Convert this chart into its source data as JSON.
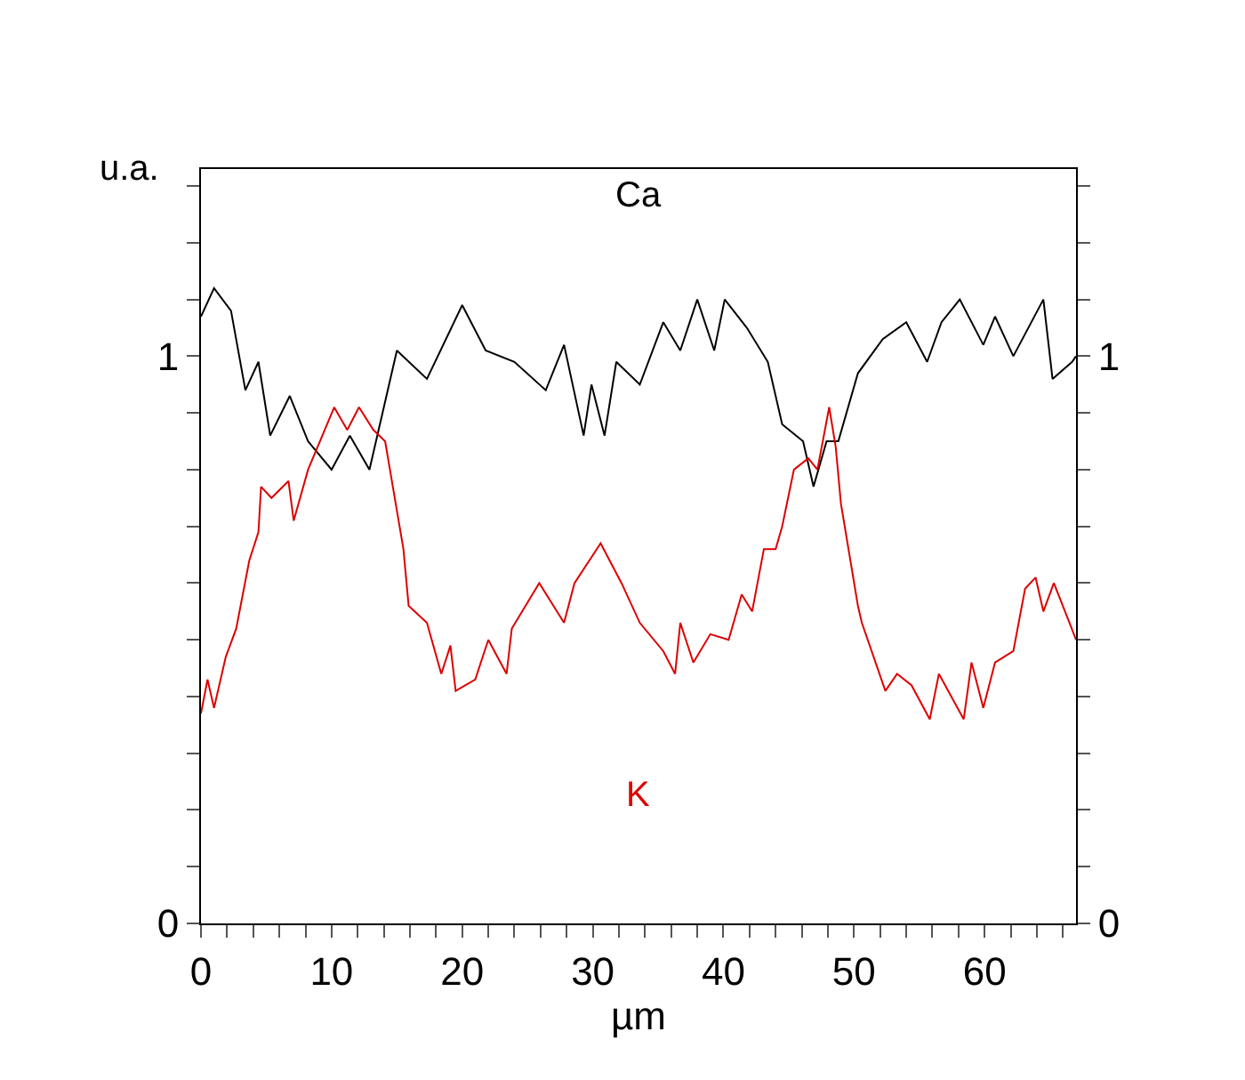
{
  "chart_data": {
    "type": "line",
    "xlabel": "µm",
    "ylabel": "u.a.",
    "legend": false,
    "marker": "none",
    "line_style": "solid",
    "xlim": [
      0,
      67
    ],
    "ylim": [
      0,
      1.33
    ],
    "y2lim": [
      0,
      1.33
    ],
    "xticks": [
      0,
      {
        "value": 2,
        "label": null
      },
      {
        "value": 4,
        "label": null
      },
      {
        "value": 6,
        "label": null
      },
      {
        "value": 8,
        "label": null
      },
      10,
      {
        "value": 12,
        "label": null
      },
      {
        "value": 14,
        "label": null
      },
      {
        "value": 16,
        "label": null
      },
      {
        "value": 18,
        "label": null
      },
      20,
      {
        "value": 22,
        "label": null
      },
      {
        "value": 24,
        "label": null
      },
      {
        "value": 26,
        "label": null
      },
      {
        "value": 28,
        "label": null
      },
      30,
      {
        "value": 32,
        "label": null
      },
      {
        "value": 34,
        "label": null
      },
      {
        "value": 36,
        "label": null
      },
      {
        "value": 38,
        "label": null
      },
      40,
      {
        "value": 42,
        "label": null
      },
      {
        "value": 44,
        "label": null
      },
      {
        "value": 46,
        "label": null
      },
      {
        "value": 48,
        "label": null
      },
      50,
      {
        "value": 52,
        "label": null
      },
      {
        "value": 54,
        "label": null
      },
      {
        "value": 56,
        "label": null
      },
      {
        "value": 58,
        "label": null
      },
      60,
      {
        "value": 62,
        "label": null
      },
      {
        "value": 64,
        "label": null
      },
      {
        "value": 66,
        "label": null
      }
    ],
    "yticks": [
      0,
      {
        "value": 0.1,
        "label": null
      },
      {
        "value": 0.2,
        "label": null
      },
      {
        "value": 0.3,
        "label": null
      },
      {
        "value": 0.4,
        "label": null
      },
      {
        "value": 0.5,
        "label": null
      },
      {
        "value": 0.6,
        "label": null
      },
      {
        "value": 0.7,
        "label": null
      },
      {
        "value": 0.8,
        "label": null
      },
      {
        "value": 0.9,
        "label": null
      },
      1,
      {
        "value": 1.1,
        "label": null
      },
      {
        "value": 1.2,
        "label": null
      },
      {
        "value": 1.3,
        "label": null
      }
    ],
    "y2ticks": [
      0,
      {
        "value": 0.1,
        "label": null
      },
      {
        "value": 0.2,
        "label": null
      },
      {
        "value": 0.3,
        "label": null
      },
      {
        "value": 0.4,
        "label": null
      },
      {
        "value": 0.5,
        "label": null
      },
      {
        "value": 0.6,
        "label": null
      },
      {
        "value": 0.7,
        "label": null
      },
      {
        "value": 0.8,
        "label": null
      },
      {
        "value": 0.9,
        "label": null
      },
      1,
      {
        "value": 1.1,
        "label": null
      },
      {
        "value": 1.2,
        "label": null
      },
      {
        "value": 1.3,
        "label": null
      }
    ],
    "series": [
      {
        "name": "Ca",
        "color": "#000000",
        "x": [
          0,
          1,
          2.3,
          3.4,
          4.4,
          5.3,
          6.8,
          8.2,
          10,
          11.4,
          12.9,
          13.9,
          15,
          17.3,
          20,
          21.8,
          24,
          26.4,
          27.8,
          29.3,
          29.9,
          30.9,
          31.8,
          33.6,
          35.4,
          36.7,
          38,
          39.3,
          40.1,
          41.8,
          43.4,
          44.5,
          46.1,
          46.9,
          47.9,
          48.8,
          50.3,
          52.2,
          54,
          55.6,
          56.7,
          58.1,
          59.9,
          60.8,
          62.2,
          64.5,
          65.2,
          66.7,
          67
        ],
        "values": [
          1.07,
          1.12,
          1.08,
          0.94,
          0.99,
          0.86,
          0.93,
          0.85,
          0.8,
          0.86,
          0.8,
          0.9,
          1.01,
          0.96,
          1.09,
          1.01,
          0.99,
          0.94,
          1.02,
          0.86,
          0.95,
          0.86,
          0.99,
          0.95,
          1.06,
          1.01,
          1.1,
          1.01,
          1.1,
          1.05,
          0.99,
          0.88,
          0.85,
          0.77,
          0.85,
          0.85,
          0.97,
          1.03,
          1.06,
          0.99,
          1.06,
          1.1,
          1.02,
          1.07,
          1.0,
          1.1,
          0.96,
          0.99,
          1.0
        ]
      },
      {
        "name": "K",
        "color": "#dd0000",
        "x": [
          0,
          0.5,
          1,
          1.9,
          2.7,
          3.7,
          4.4,
          4.6,
          5.4,
          6.7,
          7.1,
          8.2,
          10.2,
          11.2,
          12.1,
          13.2,
          14.1,
          15.5,
          15.9,
          17.3,
          18.4,
          19.1,
          19.5,
          21,
          22,
          23.4,
          23.8,
          25.9,
          27.8,
          28.6,
          30.6,
          32.2,
          33.6,
          35.4,
          36.3,
          36.7,
          37.7,
          39,
          40.4,
          41.4,
          42.2,
          43.1,
          44,
          44.5,
          45.4,
          46.5,
          47.2,
          48.1,
          48.6,
          49,
          50.3,
          50.6,
          52.4,
          53.3,
          54.4,
          55.8,
          56.5,
          58.4,
          59,
          59.9,
          60.8,
          62.2,
          63.1,
          63.9,
          64.5,
          65.3,
          66.5,
          67
        ],
        "values": [
          0.37,
          0.43,
          0.38,
          0.47,
          0.52,
          0.64,
          0.69,
          0.77,
          0.75,
          0.78,
          0.71,
          0.8,
          0.91,
          0.87,
          0.91,
          0.87,
          0.85,
          0.66,
          0.56,
          0.53,
          0.44,
          0.49,
          0.41,
          0.43,
          0.5,
          0.44,
          0.52,
          0.6,
          0.53,
          0.6,
          0.67,
          0.6,
          0.53,
          0.48,
          0.44,
          0.53,
          0.46,
          0.51,
          0.5,
          0.58,
          0.55,
          0.66,
          0.66,
          0.7,
          0.8,
          0.82,
          0.8,
          0.91,
          0.84,
          0.74,
          0.56,
          0.53,
          0.41,
          0.44,
          0.42,
          0.36,
          0.44,
          0.36,
          0.46,
          0.38,
          0.46,
          0.48,
          0.59,
          0.61,
          0.55,
          0.6,
          0.53,
          0.5
        ]
      }
    ]
  }
}
